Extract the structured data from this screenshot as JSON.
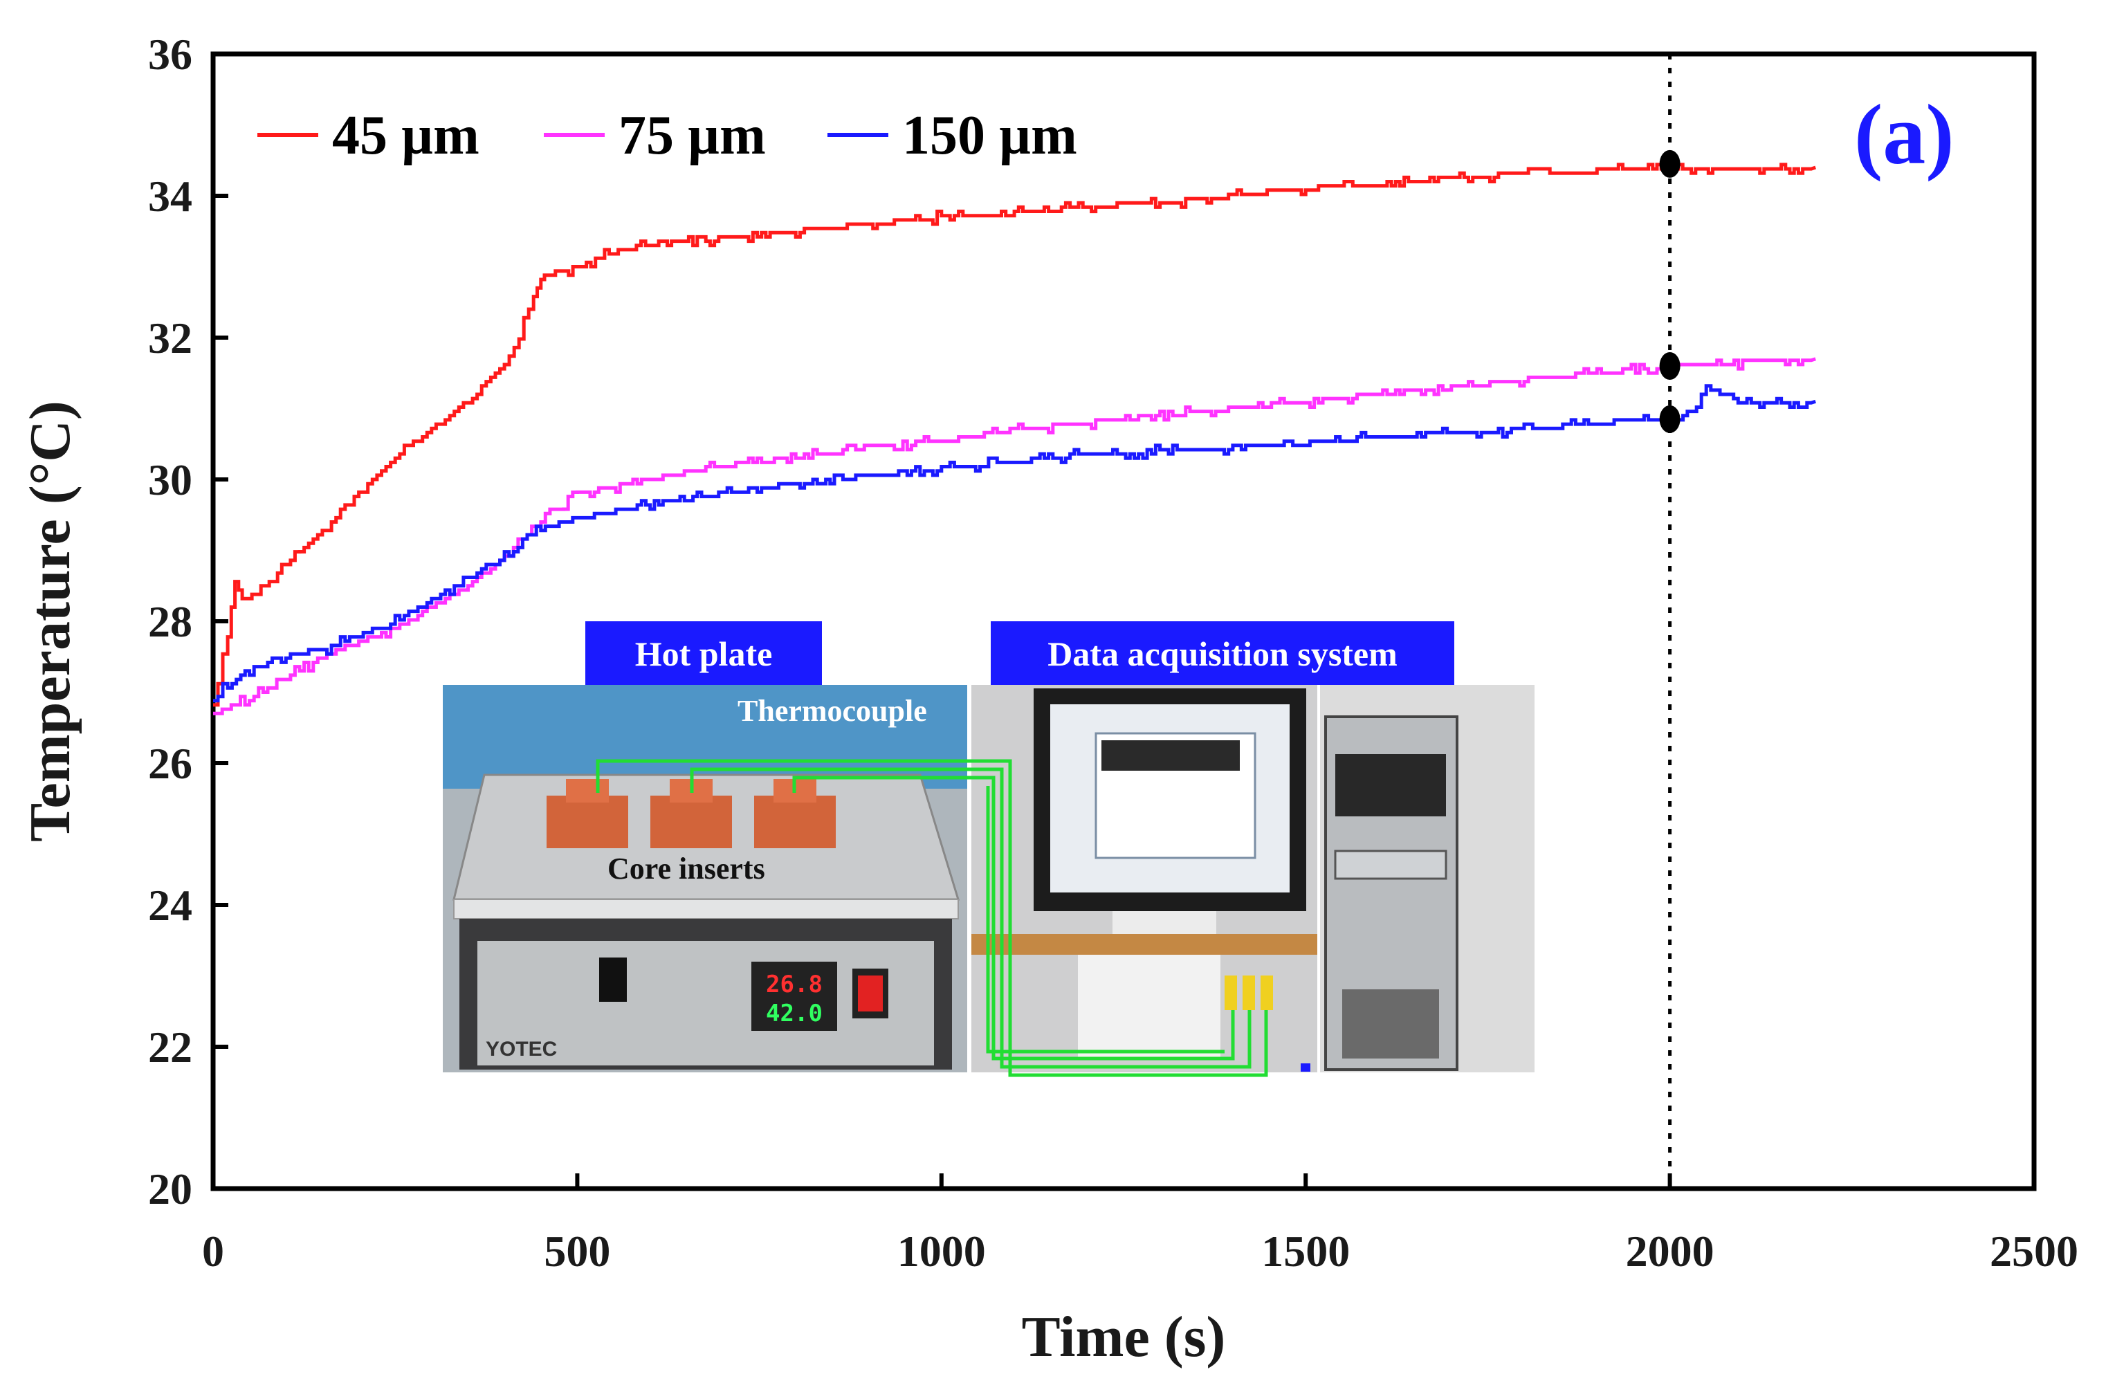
{
  "chart_data": {
    "type": "line",
    "title": "",
    "xlabel": "Time (s)",
    "ylabel": "Temperature (°C)",
    "xlim": [
      0,
      2500
    ],
    "ylim": [
      20,
      36
    ],
    "xticks": [
      0,
      500,
      1000,
      1500,
      2000,
      2500
    ],
    "yticks": [
      20,
      22,
      24,
      26,
      28,
      30,
      32,
      34,
      36
    ],
    "panel_label": "(a)",
    "reference_line_x": 2000,
    "legend_position": "top-left",
    "series": [
      {
        "name": "45 µm",
        "color": "#ff1a1a",
        "x": [
          0,
          20,
          30,
          40,
          60,
          100,
          150,
          200,
          250,
          300,
          350,
          400,
          420,
          440,
          455,
          470,
          500,
          550,
          600,
          700,
          800,
          900,
          1000,
          1100,
          1200,
          1300,
          1400,
          1500,
          1600,
          1700,
          1800,
          1900,
          2000,
          2100,
          2200
        ],
        "y": [
          26.8,
          27.8,
          28.6,
          28.3,
          28.4,
          28.8,
          29.3,
          29.8,
          30.3,
          30.7,
          31.1,
          31.6,
          32.0,
          32.6,
          32.9,
          32.9,
          33.0,
          33.2,
          33.3,
          33.4,
          33.5,
          33.6,
          33.7,
          33.75,
          33.85,
          33.9,
          34.0,
          34.1,
          34.15,
          34.25,
          34.3,
          34.35,
          34.4,
          34.4,
          34.4
        ]
      },
      {
        "name": "75 µm",
        "color": "#ff33ff",
        "x": [
          0,
          50,
          100,
          150,
          200,
          250,
          300,
          350,
          400,
          450,
          500,
          600,
          700,
          800,
          900,
          1000,
          1100,
          1200,
          1300,
          1400,
          1500,
          1600,
          1700,
          1800,
          1900,
          2000,
          2100,
          2200
        ],
        "y": [
          26.7,
          26.9,
          27.2,
          27.5,
          27.7,
          27.9,
          28.2,
          28.5,
          28.9,
          29.4,
          29.8,
          30.0,
          30.2,
          30.3,
          30.45,
          30.55,
          30.7,
          30.8,
          30.9,
          31.0,
          31.1,
          31.2,
          31.3,
          31.4,
          31.5,
          31.6,
          31.65,
          31.7
        ]
      },
      {
        "name": "150 µm",
        "color": "#1a1aff",
        "x": [
          0,
          20,
          50,
          100,
          150,
          200,
          250,
          300,
          350,
          400,
          450,
          500,
          600,
          700,
          800,
          900,
          1000,
          1100,
          1200,
          1300,
          1400,
          1500,
          1600,
          1700,
          1800,
          1900,
          2000,
          2030,
          2050,
          2100,
          2200
        ],
        "y": [
          26.9,
          27.1,
          27.3,
          27.5,
          27.6,
          27.8,
          28.0,
          28.3,
          28.6,
          28.9,
          29.3,
          29.45,
          29.65,
          29.8,
          29.95,
          30.05,
          30.15,
          30.25,
          30.35,
          30.4,
          30.45,
          30.5,
          30.6,
          30.65,
          30.7,
          30.8,
          30.85,
          30.95,
          31.3,
          31.1,
          31.1
        ]
      }
    ],
    "markers": [
      {
        "series": "45 µm",
        "x": 2000,
        "y": 34.45
      },
      {
        "series": "75 µm",
        "x": 2000,
        "y": 31.6
      },
      {
        "series": "150 µm",
        "x": 2000,
        "y": 30.85
      }
    ],
    "inset": {
      "hot_plate_title": "Hot plate",
      "data_acquisition_title": "Data acquisition system",
      "thermocouple_label": "Thermocouple",
      "core_inserts_label": "Core inserts",
      "brand_label": "YOTEC",
      "controller_pv": "26.8",
      "controller_sv": "42.0"
    },
    "colors": {
      "title_box": "#1a1aff",
      "panel_label": "#1a1aff",
      "wire": "#22dd33"
    }
  }
}
